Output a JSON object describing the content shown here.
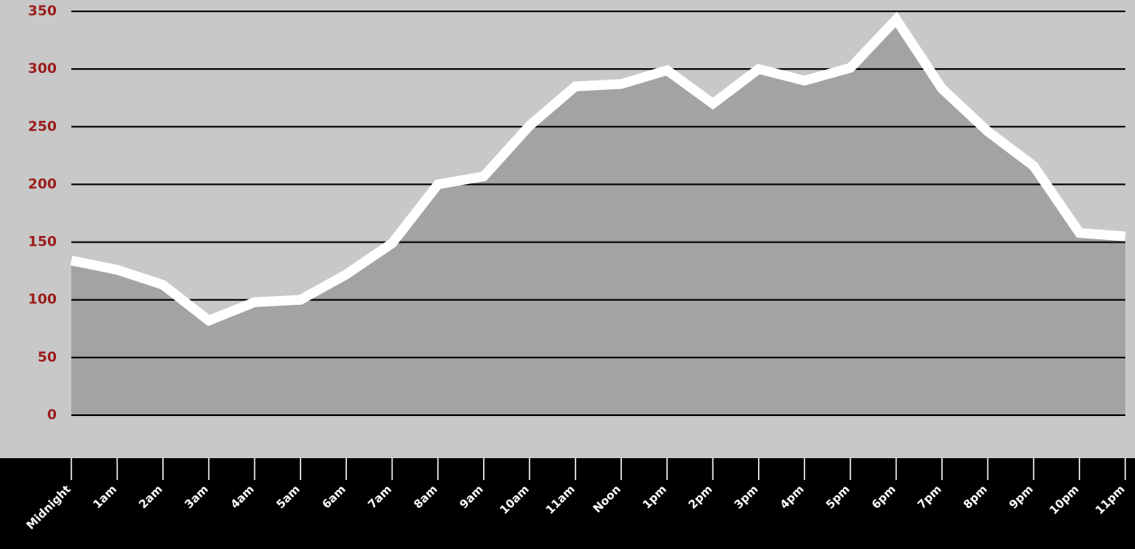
{
  "chart_data": {
    "type": "area",
    "categories": [
      "Midnight",
      "1am",
      "2am",
      "3am",
      "4am",
      "5am",
      "6am",
      "7am",
      "8am",
      "9am",
      "10am",
      "11am",
      "Noon",
      "1pm",
      "2pm",
      "3pm",
      "4pm",
      "5pm",
      "6pm",
      "7pm",
      "8pm",
      "9pm",
      "10pm",
      "11pm"
    ],
    "values": [
      134,
      126,
      113,
      82,
      98,
      100,
      122,
      149,
      200,
      207,
      251,
      285,
      287,
      299,
      270,
      300,
      290,
      301,
      343,
      283,
      246,
      216,
      158,
      155
    ],
    "color": "#a3a3a3",
    "line_color": "#ffffff",
    "ylim": [
      0,
      350
    ],
    "yticks": [
      0,
      50,
      100,
      150,
      200,
      250,
      300,
      350
    ],
    "grid": true
  }
}
